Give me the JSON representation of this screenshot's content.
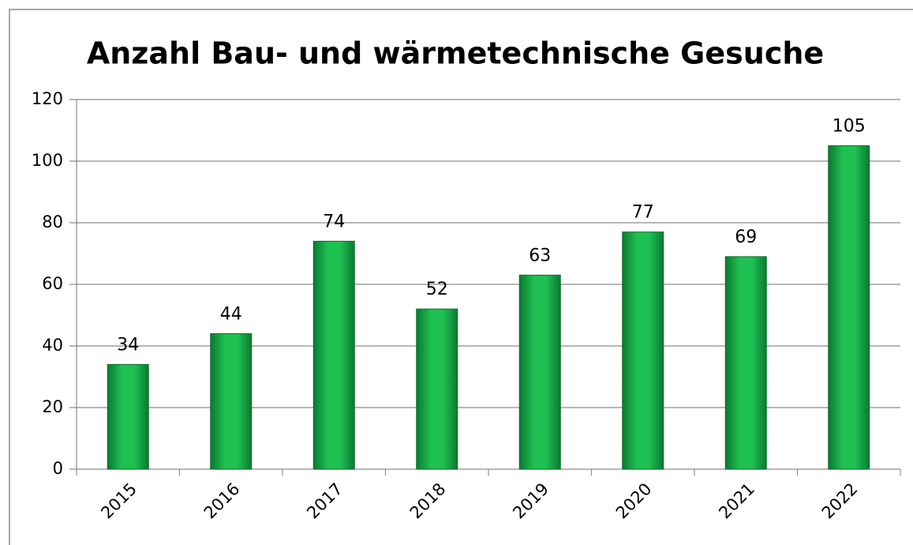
{
  "chart_data": {
    "type": "bar",
    "title": "Anzahl Bau- und wärmetechnische Gesuche",
    "categories": [
      "2015",
      "2016",
      "2017",
      "2018",
      "2019",
      "2020",
      "2021",
      "2022"
    ],
    "values": [
      34,
      44,
      74,
      52,
      63,
      77,
      69,
      105
    ],
    "color": "#1fc052",
    "ylim": [
      0,
      120
    ],
    "yticks": [
      0,
      20,
      40,
      60,
      80,
      100,
      120
    ],
    "grid": true
  }
}
